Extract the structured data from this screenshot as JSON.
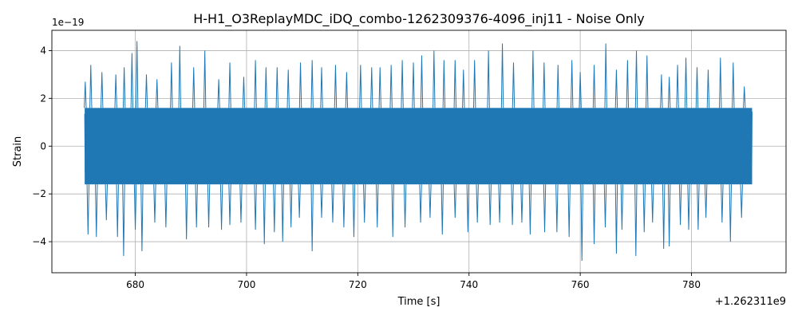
{
  "chart_data": {
    "type": "line",
    "title": "H-H1_O3ReplayMDC_iDQ_combo-1262309376-4096_inj11 - Noise Only",
    "xlabel": "Time [s]",
    "ylabel": "Strain",
    "x_offset_label": "+1.262311e9",
    "y_scale_label": "1e−19",
    "xlim": [
      665,
      797
    ],
    "ylim": [
      -5.3,
      4.85
    ],
    "x_ticks": [
      680,
      700,
      720,
      740,
      760,
      780
    ],
    "x_tick_labels": [
      "680",
      "700",
      "720",
      "740",
      "760",
      "780"
    ],
    "y_ticks": [
      -4,
      -2,
      0,
      2,
      4
    ],
    "y_tick_labels": [
      "−4",
      "−2",
      "0",
      "2",
      "4"
    ],
    "grid": true,
    "line_color": "#1f77b4",
    "series": [
      {
        "x_start": 670.9,
        "x_end": 790.9,
        "band_upper": 1.6,
        "band_lower": -1.6,
        "peaks_upper": [
          [
            671.0,
            2.7
          ],
          [
            672.0,
            3.4
          ],
          [
            674.0,
            3.1
          ],
          [
            676.5,
            3.0
          ],
          [
            678.0,
            3.3
          ],
          [
            679.4,
            3.9
          ],
          [
            680.3,
            4.4
          ],
          [
            682.0,
            3.0
          ],
          [
            683.9,
            2.8
          ],
          [
            686.5,
            3.5
          ],
          [
            688.0,
            4.2
          ],
          [
            690.5,
            3.3
          ],
          [
            692.5,
            4.0
          ],
          [
            695.0,
            2.8
          ],
          [
            697.0,
            3.5
          ],
          [
            699.5,
            2.9
          ],
          [
            701.6,
            3.6
          ],
          [
            703.5,
            3.3
          ],
          [
            705.5,
            3.3
          ],
          [
            707.5,
            3.2
          ],
          [
            709.7,
            3.5
          ],
          [
            711.8,
            3.6
          ],
          [
            713.5,
            3.3
          ],
          [
            716.0,
            3.4
          ],
          [
            718.0,
            3.1
          ],
          [
            720.5,
            3.4
          ],
          [
            722.5,
            3.3
          ],
          [
            724.0,
            3.3
          ],
          [
            726.0,
            3.4
          ],
          [
            728.0,
            3.6
          ],
          [
            730.0,
            3.5
          ],
          [
            731.5,
            3.8
          ],
          [
            733.7,
            4.0
          ],
          [
            735.5,
            3.6
          ],
          [
            737.5,
            3.6
          ],
          [
            739.0,
            3.2
          ],
          [
            741.0,
            3.6
          ],
          [
            743.5,
            4.0
          ],
          [
            746.0,
            4.3
          ],
          [
            748.0,
            3.5
          ],
          [
            751.5,
            4.0
          ],
          [
            753.5,
            3.5
          ],
          [
            756.0,
            3.4
          ],
          [
            758.5,
            3.6
          ],
          [
            760.0,
            3.1
          ],
          [
            762.5,
            3.4
          ],
          [
            764.6,
            4.3
          ],
          [
            766.5,
            3.2
          ],
          [
            768.5,
            3.6
          ],
          [
            770.1,
            4.0
          ],
          [
            772.0,
            3.8
          ],
          [
            774.6,
            3.0
          ],
          [
            776.0,
            2.9
          ],
          [
            777.5,
            3.4
          ],
          [
            779.0,
            3.7
          ],
          [
            781.0,
            3.3
          ],
          [
            783.0,
            3.2
          ],
          [
            785.2,
            3.7
          ],
          [
            787.5,
            3.5
          ],
          [
            789.5,
            2.5
          ]
        ],
        "peaks_lower": [
          [
            671.5,
            -3.7
          ],
          [
            673.0,
            -3.8
          ],
          [
            674.8,
            -3.1
          ],
          [
            676.8,
            -3.8
          ],
          [
            677.9,
            -4.6
          ],
          [
            680.0,
            -3.5
          ],
          [
            681.2,
            -4.4
          ],
          [
            683.5,
            -3.2
          ],
          [
            685.5,
            -3.4
          ],
          [
            689.2,
            -3.9
          ],
          [
            691.0,
            -3.4
          ],
          [
            693.2,
            -3.4
          ],
          [
            695.5,
            -3.5
          ],
          [
            697.0,
            -3.3
          ],
          [
            699.0,
            -3.2
          ],
          [
            701.6,
            -3.5
          ],
          [
            703.2,
            -4.1
          ],
          [
            705.0,
            -3.6
          ],
          [
            706.5,
            -4.0
          ],
          [
            708.0,
            -3.4
          ],
          [
            709.5,
            -3.0
          ],
          [
            711.8,
            -4.4
          ],
          [
            713.5,
            -3.0
          ],
          [
            715.5,
            -3.2
          ],
          [
            717.5,
            -3.4
          ],
          [
            719.3,
            -3.8
          ],
          [
            721.2,
            -3.2
          ],
          [
            723.5,
            -3.4
          ],
          [
            726.3,
            -3.8
          ],
          [
            728.5,
            -3.4
          ],
          [
            731.3,
            -3.2
          ],
          [
            733.0,
            -3.0
          ],
          [
            735.2,
            -3.7
          ],
          [
            737.5,
            -3.0
          ],
          [
            739.8,
            -3.6
          ],
          [
            741.5,
            -3.2
          ],
          [
            743.8,
            -3.3
          ],
          [
            745.5,
            -3.2
          ],
          [
            747.8,
            -3.3
          ],
          [
            749.5,
            -3.2
          ],
          [
            751.0,
            -3.7
          ],
          [
            753.6,
            -3.6
          ],
          [
            755.8,
            -3.6
          ],
          [
            758.0,
            -3.8
          ],
          [
            760.3,
            -4.8
          ],
          [
            762.5,
            -4.1
          ],
          [
            764.5,
            -3.4
          ],
          [
            766.5,
            -4.5
          ],
          [
            767.5,
            -3.5
          ],
          [
            770.0,
            -4.6
          ],
          [
            771.5,
            -3.6
          ],
          [
            773.0,
            -3.2
          ],
          [
            775.0,
            -4.3
          ],
          [
            776.0,
            -4.2
          ],
          [
            778.0,
            -3.3
          ],
          [
            779.5,
            -3.5
          ],
          [
            781.2,
            -3.5
          ],
          [
            782.6,
            -3.0
          ],
          [
            785.5,
            -3.2
          ],
          [
            787.0,
            -4.0
          ],
          [
            789.0,
            -3.0
          ]
        ]
      }
    ]
  }
}
